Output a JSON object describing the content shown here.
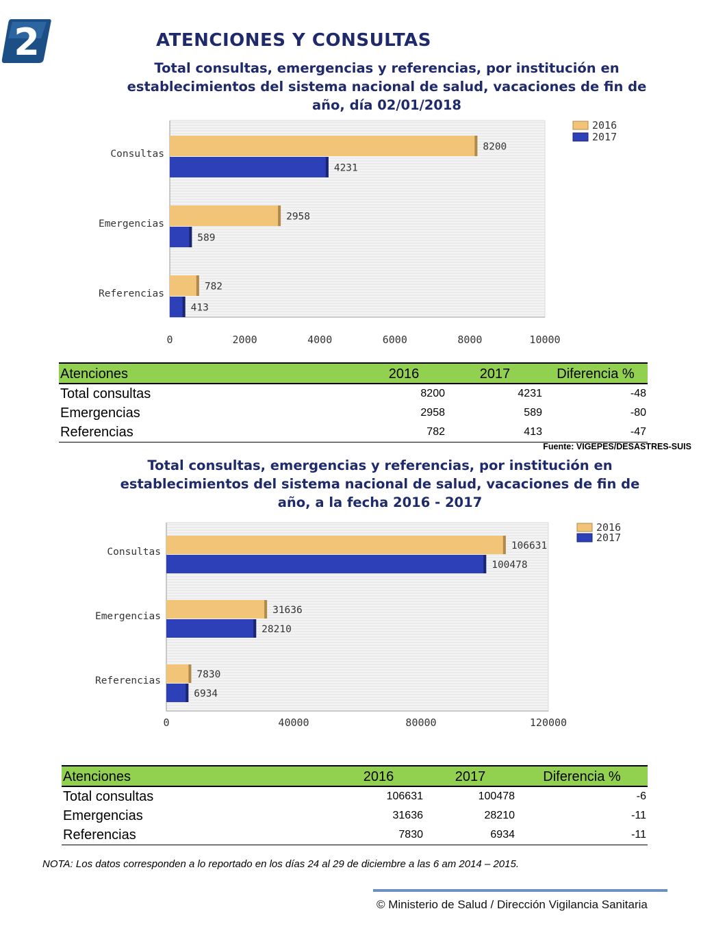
{
  "badge_number": "2",
  "header_title": "ATENCIONES Y CONSULTAS",
  "section1": {
    "subtitle": "Total consultas, emergencias y referencias, por institución en establecimientos del sistema nacional de salud, vacaciones de fin de año, día 02/01/2018"
  },
  "section2": {
    "subtitle": "Total consultas, emergencias y referencias, por institución en establecimientos del sistema nacional de salud, vacaciones de fin de año, a la fecha 2016 - 2017"
  },
  "colors": {
    "series_2016": "#f2c477",
    "series_2017": "#2e40b8",
    "header_green": "#92d050",
    "title_navy": "#1f2a6b"
  },
  "chart_data": [
    {
      "type": "bar",
      "orientation": "horizontal",
      "categories": [
        "Consultas",
        "Emergencias",
        "Referencias"
      ],
      "series": [
        {
          "name": "2016",
          "values": [
            8200,
            2958,
            782
          ]
        },
        {
          "name": "2017",
          "values": [
            4231,
            589,
            413
          ]
        }
      ],
      "xlim": [
        0,
        10000
      ],
      "xticks": [
        "0",
        "2000",
        "4000",
        "6000",
        "8000",
        "10000"
      ],
      "grid": true,
      "legend": "top-right"
    },
    {
      "type": "bar",
      "orientation": "horizontal",
      "categories": [
        "Consultas",
        "Emergencias",
        "Referencias"
      ],
      "series": [
        {
          "name": "2016",
          "values": [
            106631,
            31636,
            7830
          ]
        },
        {
          "name": "2017",
          "values": [
            100478,
            28210,
            6934
          ]
        }
      ],
      "xlim": [
        0,
        120000
      ],
      "xticks": [
        "0",
        "40000",
        "80000",
        "120000"
      ],
      "grid": true,
      "legend": "top-right"
    }
  ],
  "tables": [
    {
      "headers": [
        "Atenciones",
        "2016",
        "2017",
        "Diferencia %"
      ],
      "rows": [
        [
          "Total consultas",
          "8200",
          "4231",
          "-48"
        ],
        [
          "Emergencias",
          "2958",
          "589",
          "-80"
        ],
        [
          "Referencias",
          "782",
          "413",
          "-47"
        ]
      ]
    },
    {
      "headers": [
        "Atenciones",
        "2016",
        "2017",
        "Diferencia %"
      ],
      "rows": [
        [
          "Total consultas",
          "106631",
          "100478",
          "-6"
        ],
        [
          "Emergencias",
          "31636",
          "28210",
          "-11"
        ],
        [
          "Referencias",
          "7830",
          "6934",
          "-11"
        ]
      ]
    }
  ],
  "source": "Fuente: VIGEPES/DESASTRES-SUIS",
  "note": "NOTA: Los datos corresponden a lo reportado en los días 24 al 29 de diciembre a las 6 am 2014 – 2015.",
  "footer": "© Ministerio de Salud / Dirección Vigilancia Sanitaria"
}
